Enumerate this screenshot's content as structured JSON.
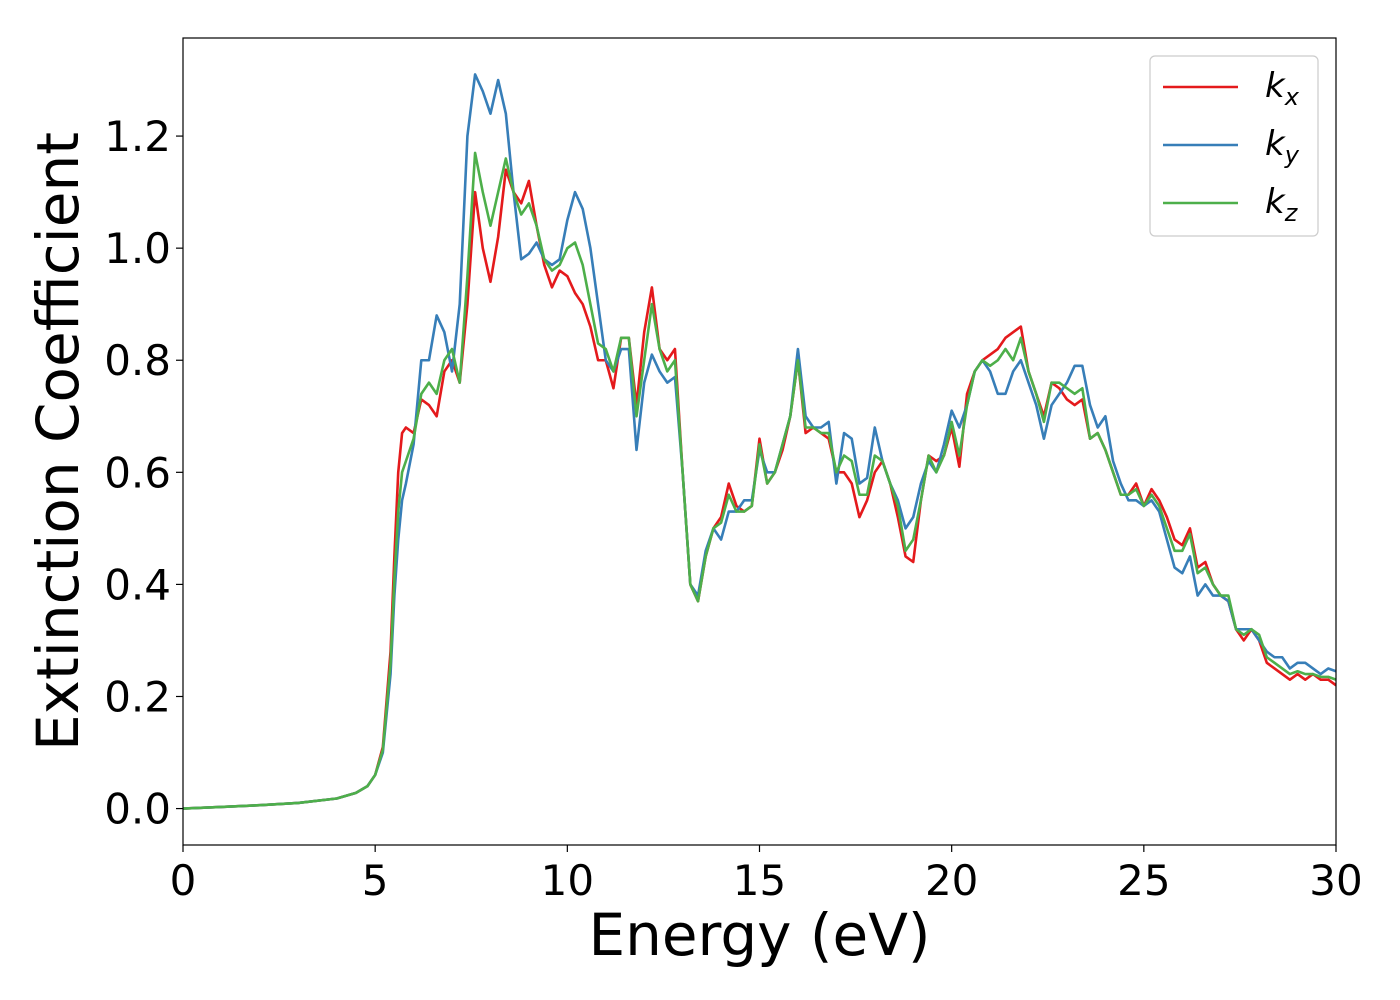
{
  "chart_data": {
    "type": "line",
    "title": "",
    "xlabel": "Energy (eV)",
    "ylabel": "Extinction Coefficient",
    "xlim": [
      0,
      30
    ],
    "ylim": [
      -0.065,
      1.375
    ],
    "xticks": [
      0,
      5,
      10,
      15,
      20,
      25,
      30
    ],
    "xtick_labels": [
      "0",
      "5",
      "10",
      "15",
      "20",
      "25",
      "30"
    ],
    "yticks": [
      0.0,
      0.2,
      0.4,
      0.6,
      0.8,
      1.0,
      1.2
    ],
    "ytick_labels": [
      "0.0",
      "0.2",
      "0.4",
      "0.6",
      "0.8",
      "1.0",
      "1.2"
    ],
    "grid": false,
    "legend": {
      "position": "top-right",
      "frame": true
    },
    "series": [
      {
        "name": "k",
        "subscript": "x",
        "color": "#e41a1c",
        "x": [
          0,
          1,
          2,
          3,
          4,
          4.5,
          4.8,
          5,
          5.2,
          5.4,
          5.5,
          5.6,
          5.7,
          5.8,
          6,
          6.2,
          6.4,
          6.6,
          6.8,
          7,
          7.2,
          7.4,
          7.6,
          7.8,
          8,
          8.2,
          8.4,
          8.6,
          8.8,
          9,
          9.2,
          9.4,
          9.6,
          9.8,
          10,
          10.2,
          10.4,
          10.6,
          10.8,
          11,
          11.2,
          11.4,
          11.6,
          11.8,
          12,
          12.2,
          12.4,
          12.6,
          12.8,
          13,
          13.2,
          13.4,
          13.6,
          13.8,
          14,
          14.2,
          14.4,
          14.6,
          14.8,
          15,
          15.2,
          15.4,
          15.6,
          15.8,
          16,
          16.2,
          16.4,
          16.6,
          16.8,
          17,
          17.2,
          17.4,
          17.6,
          17.8,
          18,
          18.2,
          18.4,
          18.6,
          18.8,
          19,
          19.2,
          19.4,
          19.6,
          19.8,
          20,
          20.2,
          20.4,
          20.6,
          20.8,
          21,
          21.2,
          21.4,
          21.6,
          21.8,
          22,
          22.2,
          22.4,
          22.6,
          22.8,
          23,
          23.2,
          23.4,
          23.6,
          23.8,
          24,
          24.2,
          24.4,
          24.6,
          24.8,
          25,
          25.2,
          25.4,
          25.6,
          25.8,
          26,
          26.2,
          26.4,
          26.6,
          26.8,
          27,
          27.2,
          27.4,
          27.6,
          27.8,
          28,
          28.2,
          28.4,
          28.6,
          28.8,
          29,
          29.2,
          29.4,
          29.6,
          29.8,
          30
        ],
        "y": [
          0,
          0.003,
          0.006,
          0.01,
          0.018,
          0.028,
          0.04,
          0.06,
          0.11,
          0.28,
          0.45,
          0.6,
          0.67,
          0.68,
          0.67,
          0.73,
          0.72,
          0.7,
          0.78,
          0.8,
          0.76,
          0.9,
          1.1,
          1.0,
          0.94,
          1.02,
          1.14,
          1.1,
          1.08,
          1.12,
          1.04,
          0.97,
          0.93,
          0.96,
          0.95,
          0.92,
          0.9,
          0.86,
          0.8,
          0.8,
          0.75,
          0.84,
          0.84,
          0.72,
          0.85,
          0.93,
          0.82,
          0.8,
          0.82,
          0.6,
          0.4,
          0.37,
          0.45,
          0.5,
          0.52,
          0.58,
          0.54,
          0.53,
          0.54,
          0.66,
          0.58,
          0.6,
          0.64,
          0.7,
          0.8,
          0.67,
          0.68,
          0.67,
          0.66,
          0.6,
          0.6,
          0.58,
          0.52,
          0.55,
          0.6,
          0.62,
          0.58,
          0.52,
          0.45,
          0.44,
          0.55,
          0.63,
          0.62,
          0.63,
          0.68,
          0.61,
          0.74,
          0.78,
          0.8,
          0.81,
          0.82,
          0.84,
          0.85,
          0.86,
          0.78,
          0.74,
          0.7,
          0.76,
          0.75,
          0.73,
          0.72,
          0.73,
          0.66,
          0.67,
          0.64,
          0.6,
          0.56,
          0.56,
          0.58,
          0.54,
          0.57,
          0.55,
          0.52,
          0.48,
          0.47,
          0.5,
          0.43,
          0.44,
          0.4,
          0.38,
          0.37,
          0.32,
          0.3,
          0.32,
          0.3,
          0.26,
          0.25,
          0.24,
          0.23,
          0.24,
          0.23,
          0.24,
          0.23,
          0.23,
          0.22
        ]
      },
      {
        "name": "k",
        "subscript": "y",
        "color": "#377eb8",
        "x": [
          0,
          1,
          2,
          3,
          4,
          4.5,
          4.8,
          5,
          5.2,
          5.4,
          5.5,
          5.6,
          5.7,
          5.8,
          6,
          6.2,
          6.4,
          6.6,
          6.8,
          7,
          7.2,
          7.4,
          7.6,
          7.8,
          8,
          8.2,
          8.4,
          8.6,
          8.8,
          9,
          9.2,
          9.4,
          9.6,
          9.8,
          10,
          10.2,
          10.4,
          10.6,
          10.8,
          11,
          11.2,
          11.4,
          11.6,
          11.8,
          12,
          12.2,
          12.4,
          12.6,
          12.8,
          13,
          13.2,
          13.4,
          13.6,
          13.8,
          14,
          14.2,
          14.4,
          14.6,
          14.8,
          15,
          15.2,
          15.4,
          15.6,
          15.8,
          16,
          16.2,
          16.4,
          16.6,
          16.8,
          17,
          17.2,
          17.4,
          17.6,
          17.8,
          18,
          18.2,
          18.4,
          18.6,
          18.8,
          19,
          19.2,
          19.4,
          19.6,
          19.8,
          20,
          20.2,
          20.4,
          20.6,
          20.8,
          21,
          21.2,
          21.4,
          21.6,
          21.8,
          22,
          22.2,
          22.4,
          22.6,
          22.8,
          23,
          23.2,
          23.4,
          23.6,
          23.8,
          24,
          24.2,
          24.4,
          24.6,
          24.8,
          25,
          25.2,
          25.4,
          25.6,
          25.8,
          26,
          26.2,
          26.4,
          26.6,
          26.8,
          27,
          27.2,
          27.4,
          27.6,
          27.8,
          28,
          28.2,
          28.4,
          28.6,
          28.8,
          29,
          29.2,
          29.4,
          29.6,
          29.8,
          30
        ],
        "y": [
          0,
          0.003,
          0.006,
          0.01,
          0.018,
          0.028,
          0.04,
          0.06,
          0.1,
          0.24,
          0.38,
          0.48,
          0.55,
          0.58,
          0.65,
          0.8,
          0.8,
          0.88,
          0.85,
          0.78,
          0.9,
          1.2,
          1.31,
          1.28,
          1.24,
          1.3,
          1.24,
          1.1,
          0.98,
          0.99,
          1.01,
          0.98,
          0.97,
          0.98,
          1.05,
          1.1,
          1.07,
          1.0,
          0.9,
          0.8,
          0.78,
          0.82,
          0.82,
          0.64,
          0.76,
          0.81,
          0.78,
          0.76,
          0.77,
          0.6,
          0.4,
          0.38,
          0.46,
          0.5,
          0.48,
          0.53,
          0.53,
          0.55,
          0.55,
          0.64,
          0.6,
          0.6,
          0.65,
          0.7,
          0.82,
          0.7,
          0.68,
          0.68,
          0.69,
          0.58,
          0.67,
          0.66,
          0.58,
          0.59,
          0.68,
          0.62,
          0.58,
          0.55,
          0.5,
          0.52,
          0.58,
          0.62,
          0.6,
          0.65,
          0.71,
          0.68,
          0.72,
          0.78,
          0.8,
          0.78,
          0.74,
          0.74,
          0.78,
          0.8,
          0.76,
          0.72,
          0.66,
          0.72,
          0.74,
          0.76,
          0.79,
          0.79,
          0.72,
          0.68,
          0.7,
          0.62,
          0.58,
          0.55,
          0.55,
          0.54,
          0.55,
          0.53,
          0.48,
          0.43,
          0.42,
          0.45,
          0.38,
          0.4,
          0.38,
          0.38,
          0.37,
          0.32,
          0.32,
          0.32,
          0.3,
          0.28,
          0.27,
          0.27,
          0.25,
          0.26,
          0.26,
          0.25,
          0.24,
          0.25,
          0.245
        ]
      },
      {
        "name": "k",
        "subscript": "z",
        "color": "#4daf4a",
        "x": [
          0,
          1,
          2,
          3,
          4,
          4.5,
          4.8,
          5,
          5.2,
          5.4,
          5.5,
          5.6,
          5.7,
          5.8,
          6,
          6.2,
          6.4,
          6.6,
          6.8,
          7,
          7.2,
          7.4,
          7.6,
          7.8,
          8,
          8.2,
          8.4,
          8.6,
          8.8,
          9,
          9.2,
          9.4,
          9.6,
          9.8,
          10,
          10.2,
          10.4,
          10.6,
          10.8,
          11,
          11.2,
          11.4,
          11.6,
          11.8,
          12,
          12.2,
          12.4,
          12.6,
          12.8,
          13,
          13.2,
          13.4,
          13.6,
          13.8,
          14,
          14.2,
          14.4,
          14.6,
          14.8,
          15,
          15.2,
          15.4,
          15.6,
          15.8,
          16,
          16.2,
          16.4,
          16.6,
          16.8,
          17,
          17.2,
          17.4,
          17.6,
          17.8,
          18,
          18.2,
          18.4,
          18.6,
          18.8,
          19,
          19.2,
          19.4,
          19.6,
          19.8,
          20,
          20.2,
          20.4,
          20.6,
          20.8,
          21,
          21.2,
          21.4,
          21.6,
          21.8,
          22,
          22.2,
          22.4,
          22.6,
          22.8,
          23,
          23.2,
          23.4,
          23.6,
          23.8,
          24,
          24.2,
          24.4,
          24.6,
          24.8,
          25,
          25.2,
          25.4,
          25.6,
          25.8,
          26,
          26.2,
          26.4,
          26.6,
          26.8,
          27,
          27.2,
          27.4,
          27.6,
          27.8,
          28,
          28.2,
          28.4,
          28.6,
          28.8,
          29,
          29.2,
          29.4,
          29.6,
          29.8,
          30
        ],
        "y": [
          0,
          0.003,
          0.006,
          0.01,
          0.018,
          0.028,
          0.04,
          0.06,
          0.105,
          0.26,
          0.41,
          0.53,
          0.6,
          0.62,
          0.66,
          0.74,
          0.76,
          0.74,
          0.8,
          0.82,
          0.76,
          0.95,
          1.17,
          1.1,
          1.04,
          1.1,
          1.16,
          1.1,
          1.06,
          1.08,
          1.04,
          0.98,
          0.96,
          0.97,
          1.0,
          1.01,
          0.97,
          0.9,
          0.83,
          0.82,
          0.78,
          0.84,
          0.84,
          0.7,
          0.8,
          0.9,
          0.82,
          0.78,
          0.8,
          0.6,
          0.4,
          0.37,
          0.45,
          0.5,
          0.51,
          0.56,
          0.53,
          0.53,
          0.54,
          0.65,
          0.58,
          0.6,
          0.65,
          0.7,
          0.8,
          0.68,
          0.68,
          0.67,
          0.67,
          0.6,
          0.63,
          0.62,
          0.56,
          0.56,
          0.63,
          0.62,
          0.58,
          0.54,
          0.46,
          0.48,
          0.55,
          0.63,
          0.6,
          0.63,
          0.69,
          0.63,
          0.72,
          0.78,
          0.8,
          0.79,
          0.8,
          0.82,
          0.8,
          0.84,
          0.78,
          0.74,
          0.69,
          0.76,
          0.76,
          0.75,
          0.74,
          0.75,
          0.66,
          0.67,
          0.64,
          0.6,
          0.56,
          0.56,
          0.57,
          0.54,
          0.56,
          0.54,
          0.5,
          0.46,
          0.46,
          0.49,
          0.42,
          0.43,
          0.4,
          0.38,
          0.38,
          0.32,
          0.31,
          0.32,
          0.31,
          0.27,
          0.26,
          0.25,
          0.24,
          0.245,
          0.24,
          0.24,
          0.235,
          0.235,
          0.23
        ]
      }
    ]
  }
}
